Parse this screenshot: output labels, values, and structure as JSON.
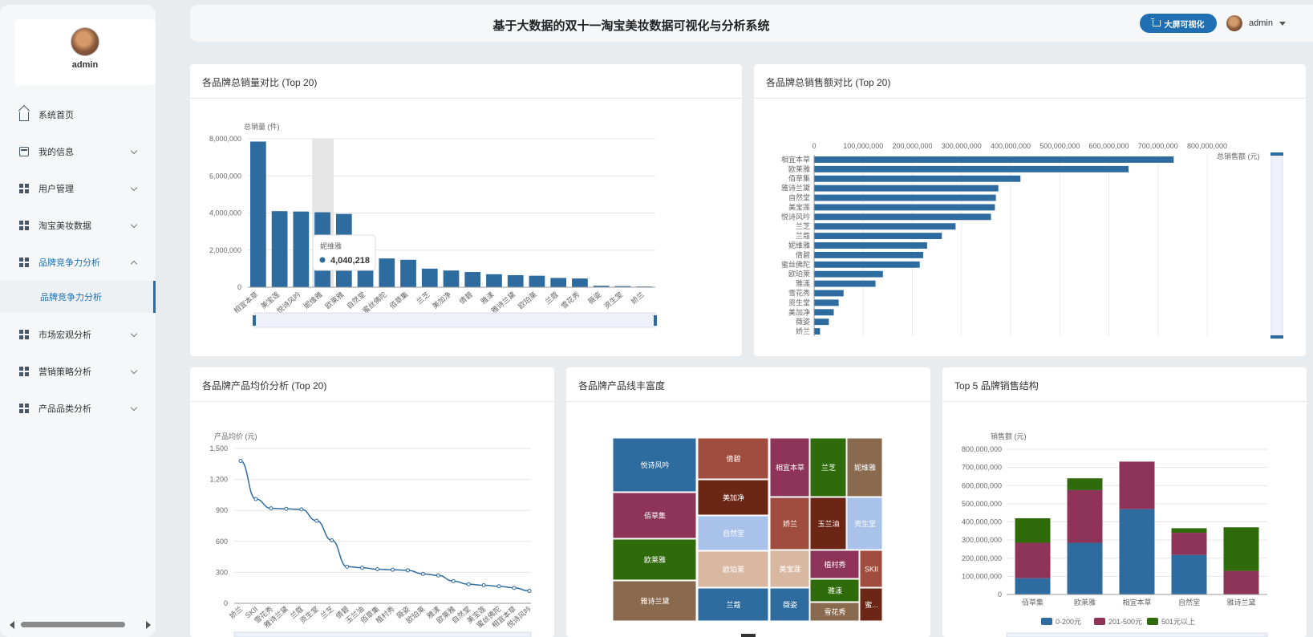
{
  "sidebar": {
    "user": {
      "name": "admin"
    },
    "menu": [
      {
        "label": "系统首页",
        "icon": "home-icon"
      },
      {
        "label": "我的信息",
        "icon": "card-icon"
      },
      {
        "label": "用户管理",
        "icon": "grid-icon"
      },
      {
        "label": "淘宝美妆数据",
        "icon": "grid-icon"
      },
      {
        "label": "品牌竞争力分析",
        "icon": "grid-icon",
        "expanded": true
      },
      {
        "label": "市场宏观分析",
        "icon": "grid-icon"
      },
      {
        "label": "营销策略分析",
        "icon": "grid-icon"
      },
      {
        "label": "产品品类分析",
        "icon": "grid-icon"
      }
    ],
    "submenu": [
      {
        "label": "品牌竞争力分析"
      }
    ]
  },
  "header": {
    "title": "基于大数据的双十一淘宝美妆数据可视化与分析系统",
    "bigscreen_label": "大屏可视化",
    "user_name": "admin"
  },
  "colors": {
    "primary": "#1f6fb2",
    "bar": "#2e6b9e",
    "series_mid": "#8e3459",
    "series_high": "#2f6b0b"
  },
  "panels": {
    "sales_qty": {
      "title": "各品牌总销量对比 (Top 20)",
      "tooltip": {
        "label": "妮维雅",
        "value": "4,040,218"
      }
    },
    "sales_amt": {
      "title": "各品牌总销售额对比 (Top 20)"
    },
    "avg_price": {
      "title": "各品牌产品均价分析 (Top 20)"
    },
    "richness": {
      "title": "各品牌产品线丰富度"
    },
    "structure": {
      "title": "Top 5 品牌销售结构"
    }
  },
  "chart_data": [
    {
      "type": "bar",
      "title": "各品牌总销量对比 (Top 20)",
      "ylabel": "总销量 (件)",
      "ylim": [
        0,
        8000000
      ],
      "yticks": [
        "0",
        "2,000,000",
        "4,000,000",
        "6,000,000",
        "8,000,000"
      ],
      "categories": [
        "相宜本草",
        "美宝莲",
        "悦诗风吟",
        "妮维雅",
        "欧莱雅",
        "自然堂",
        "蜜丝佛陀",
        "佰草集",
        "兰芝",
        "美加净",
        "倩碧",
        "雅漾",
        "雅诗兰黛",
        "欧珀莱",
        "兰蔻",
        "雪花秀",
        "薇姿",
        "资生堂",
        "娇兰"
      ],
      "values": [
        7850000,
        4100000,
        4080000,
        4040218,
        3950000,
        1650000,
        1550000,
        1480000,
        1000000,
        900000,
        820000,
        700000,
        650000,
        620000,
        500000,
        470000,
        80000,
        60000,
        40000
      ]
    },
    {
      "type": "bar",
      "orientation": "horizontal",
      "title": "各品牌总销售额对比 (Top 20)",
      "xlabel": "总销售额 (元)",
      "xlim": [
        0,
        800000000
      ],
      "xticks": [
        "0",
        "100,000,000",
        "200,000,000",
        "300,000,000",
        "400,000,000",
        "500,000,000",
        "600,000,000",
        "700,000,000",
        "800,000,000"
      ],
      "categories": [
        "相宜本草",
        "欧莱雅",
        "佰草集",
        "雅诗兰黛",
        "自然堂",
        "美宝莲",
        "悦诗风吟",
        "兰芝",
        "兰蔻",
        "妮维雅",
        "倩碧",
        "蜜丝佛陀",
        "欧珀莱",
        "雅漾",
        "雪花秀",
        "资生堂",
        "美加净",
        "薇姿",
        "娇兰"
      ],
      "values": [
        732000000,
        640000000,
        420000000,
        375000000,
        370000000,
        368000000,
        360000000,
        288000000,
        260000000,
        230000000,
        222000000,
        215000000,
        140000000,
        125000000,
        60000000,
        50000000,
        40000000,
        30000000,
        12000000
      ]
    },
    {
      "type": "line",
      "title": "各品牌产品均价分析 (Top 20)",
      "ylabel": "产品均价 (元)",
      "ylim": [
        0,
        1500
      ],
      "yticks": [
        "0",
        "300",
        "600",
        "900",
        "1,200",
        "1,500"
      ],
      "categories": [
        "娇兰",
        "SKII",
        "雪花秀",
        "雅诗兰黛",
        "兰蔻",
        "资生堂",
        "兰芝",
        "倩碧",
        "玉兰油",
        "佰草集",
        "植村秀",
        "薇姿",
        "欧珀莱",
        "雅漾",
        "欧莱雅",
        "自然堂",
        "美宝莲",
        "蜜丝佛陀",
        "相宜本草",
        "悦诗风吟"
      ],
      "values": [
        1380,
        1010,
        920,
        915,
        910,
        800,
        610,
        355,
        345,
        330,
        325,
        320,
        285,
        270,
        215,
        185,
        175,
        165,
        150,
        120
      ]
    },
    {
      "type": "treemap",
      "title": "各品牌产品线丰富度",
      "items": [
        {
          "name": "悦诗风吟",
          "color": "#2e6b9e"
        },
        {
          "name": "佰草集",
          "color": "#8e3459"
        },
        {
          "name": "欧莱雅",
          "color": "#2f6b0b"
        },
        {
          "name": "雅诗兰黛",
          "color": "#8a6a4f"
        },
        {
          "name": "倩碧",
          "color": "#a04c3e"
        },
        {
          "name": "美加净",
          "color": "#6b2616"
        },
        {
          "name": "自然堂",
          "color": "#a9c2e9"
        },
        {
          "name": "欧珀莱",
          "color": "#d9b8a2"
        },
        {
          "name": "兰蔻",
          "color": "#2e6b9e"
        },
        {
          "name": "相宜本草",
          "color": "#8e3459"
        },
        {
          "name": "兰芝",
          "color": "#2f6b0b"
        },
        {
          "name": "妮维雅",
          "color": "#8a6a4f"
        },
        {
          "name": "娇兰",
          "color": "#a04c3e"
        },
        {
          "name": "玉兰油",
          "color": "#6b2616"
        },
        {
          "name": "资生堂",
          "color": "#a9c2e9"
        },
        {
          "name": "美宝莲",
          "color": "#d9b8a2"
        },
        {
          "name": "植村秀",
          "color": "#8e3459"
        },
        {
          "name": "SKII",
          "color": "#a04c3e"
        },
        {
          "name": "雅漾",
          "color": "#2f6b0b"
        },
        {
          "name": "雪花秀",
          "color": "#8a6a4f"
        },
        {
          "name": "薇姿",
          "color": "#2e6b9e"
        },
        {
          "name": "蜜...",
          "color": "#6b2616"
        }
      ]
    },
    {
      "type": "bar",
      "stacked": true,
      "title": "Top 5 品牌销售结构",
      "ylabel": "销售额 (元)",
      "ylim": [
        0,
        800000000
      ],
      "yticks": [
        "0",
        "100,000,000",
        "200,000,000",
        "300,000,000",
        "400,000,000",
        "500,000,000",
        "600,000,000",
        "700,000,000",
        "800,000,000"
      ],
      "categories": [
        "佰草集",
        "欧莱雅",
        "相宜本草",
        "自然堂",
        "雅诗兰黛"
      ],
      "series": [
        {
          "name": "0-200元",
          "color": "#2e6b9e",
          "values": [
            90000000,
            285000000,
            470000000,
            218000000,
            0
          ]
        },
        {
          "name": "201-500元",
          "color": "#8e3459",
          "values": [
            195000000,
            290000000,
            262000000,
            122000000,
            130000000
          ]
        },
        {
          "name": "501元以上",
          "color": "#2f6b0b",
          "values": [
            135000000,
            65000000,
            0,
            25000000,
            240000000
          ]
        }
      ],
      "legend": "bottom"
    }
  ]
}
